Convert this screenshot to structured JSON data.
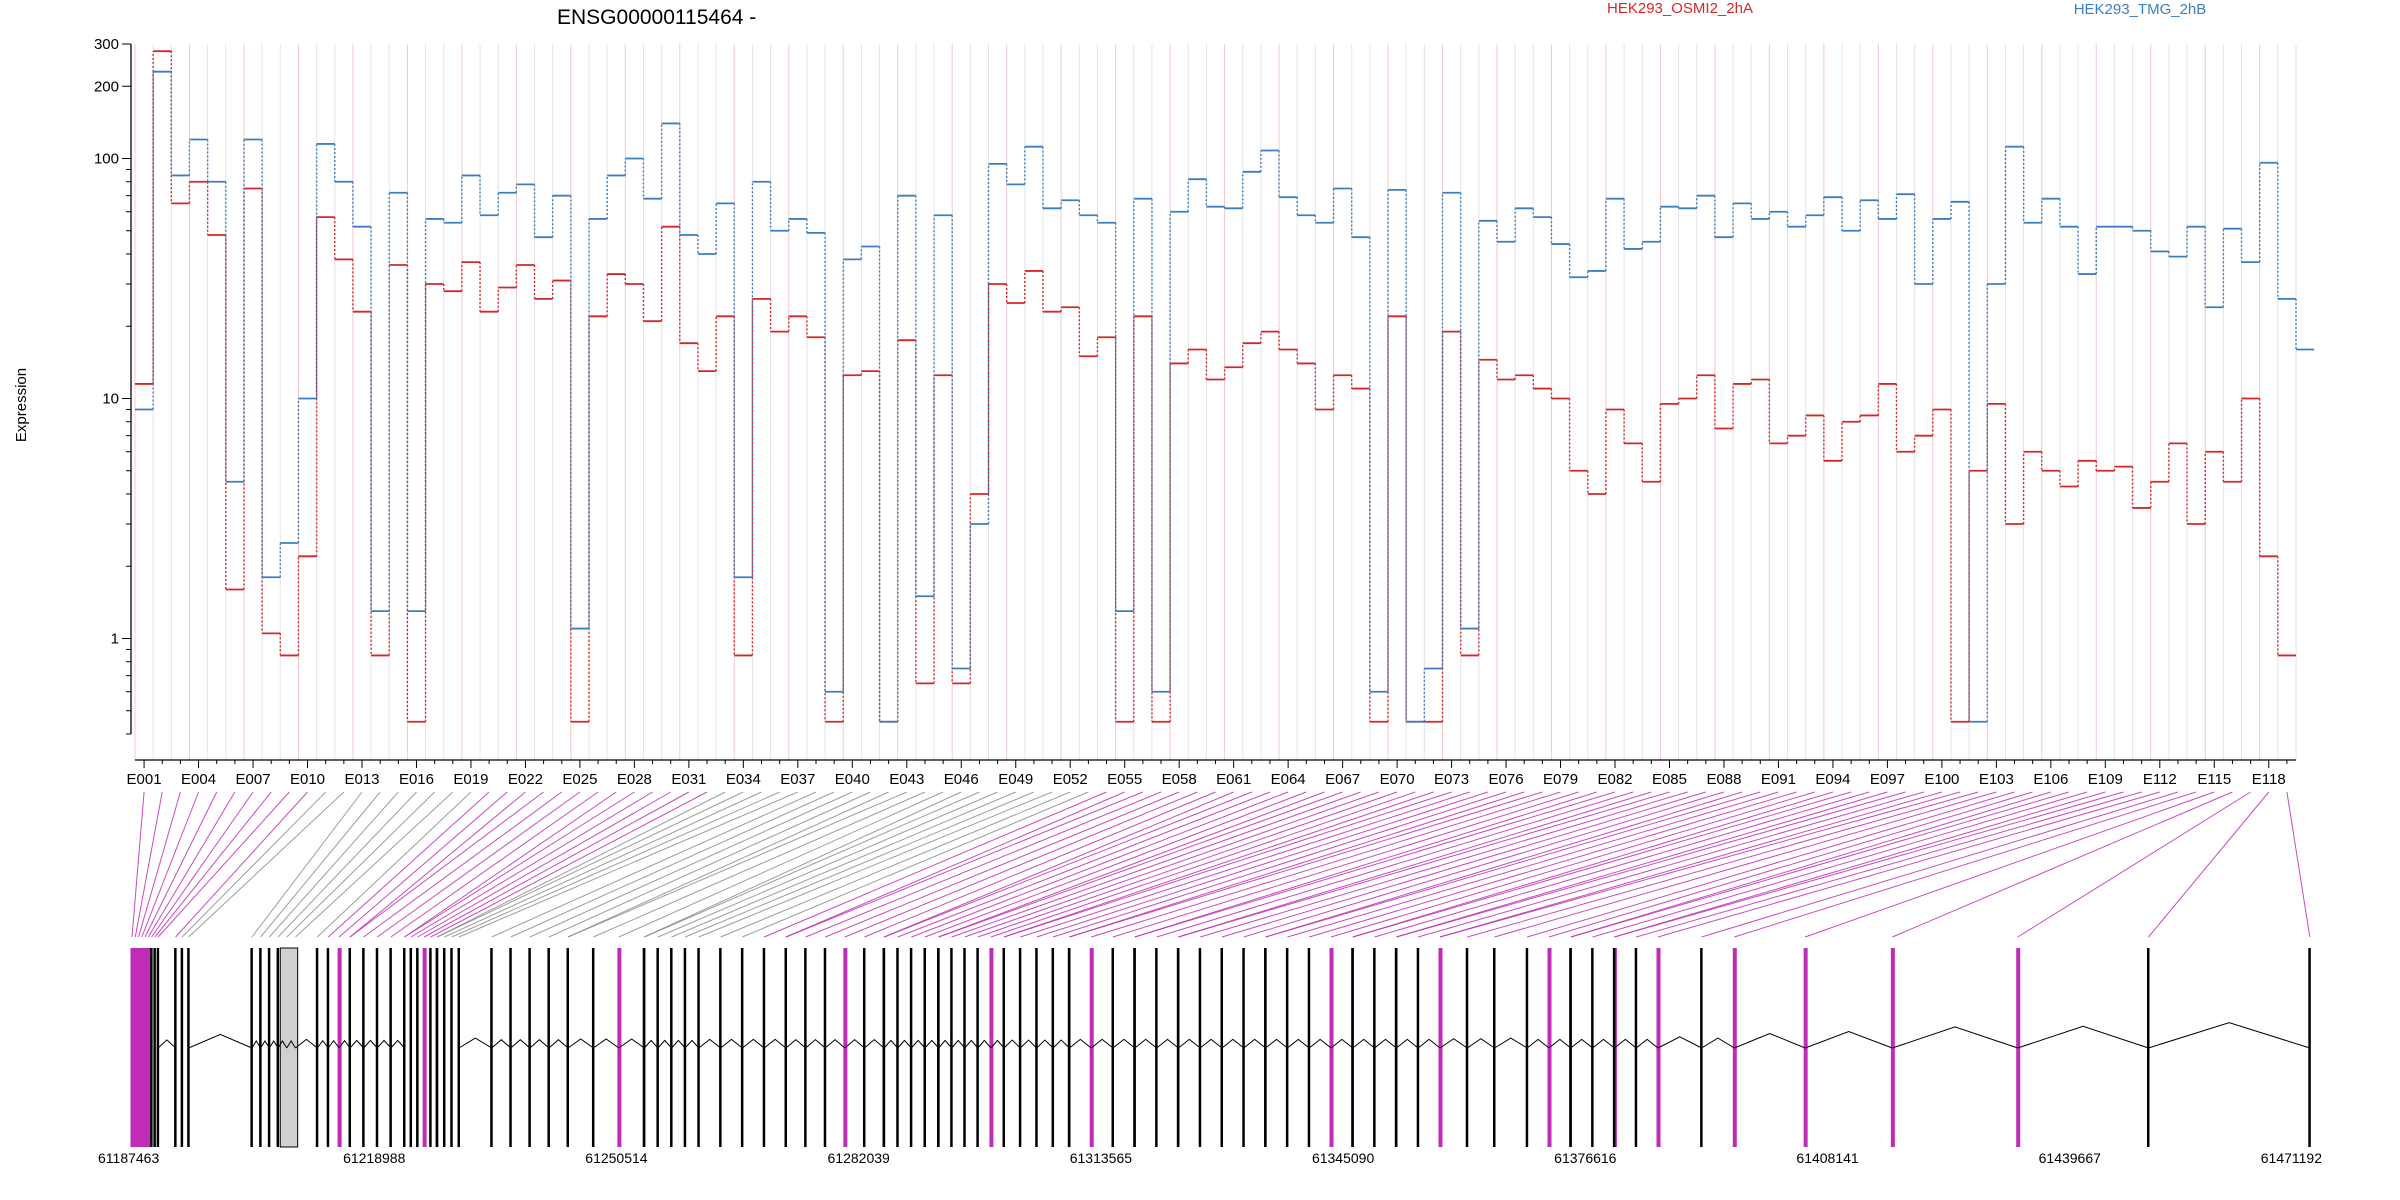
{
  "chart_data": {
    "type": "line",
    "title": "ENSG00000115464 -",
    "xlabel": "",
    "ylabel": "Expression",
    "y_scale": "log",
    "ylim": [
      0.4,
      300
    ],
    "y_ticks": [
      1,
      10,
      100,
      200,
      300
    ],
    "y_tick_labels": [
      "1",
      "10",
      "100",
      "200",
      "300"
    ],
    "legend_placement": "top-right",
    "grid": "vertical lines at each exon bin",
    "x_tick_labels": [
      "E001",
      "E004",
      "E007",
      "E010",
      "E013",
      "E016",
      "E019",
      "E022",
      "E025",
      "E028",
      "E031",
      "E034",
      "E037",
      "E040",
      "E043",
      "E046",
      "E049",
      "E052",
      "E055",
      "E058",
      "E061",
      "E064",
      "E067",
      "E070",
      "E073",
      "E076",
      "E079",
      "E082",
      "E085",
      "E088",
      "E091",
      "E094",
      "E097",
      "E100",
      "E103",
      "E106",
      "E109",
      "E112",
      "E115",
      "E118"
    ],
    "series": [
      {
        "name": "HEK293_OSMI2_2hA",
        "color": "#d62728",
        "values": [
          11.5,
          280,
          65,
          80,
          48,
          1.6,
          75,
          1.05,
          0.85,
          2.2,
          57,
          38,
          23,
          0.85,
          36,
          0.45,
          30,
          28,
          37,
          23,
          29,
          36,
          26,
          31,
          0.45,
          22,
          33,
          30,
          21,
          52,
          17,
          13,
          22,
          0.85,
          26,
          19,
          22,
          18,
          0.45,
          12.5,
          13,
          0.45,
          17.5,
          0.65,
          12.5,
          0.65,
          4,
          30,
          25,
          34,
          23,
          24,
          15,
          18,
          0.45,
          22,
          0.45,
          14,
          16,
          12,
          13.5,
          17,
          19,
          16,
          14,
          9,
          12.5,
          11,
          0.45,
          22,
          0.45,
          0.45,
          19,
          0.85,
          14.5,
          12,
          12.5,
          11,
          10,
          5,
          4,
          9,
          6.5,
          4.5,
          9.5,
          10,
          12.5,
          7.5,
          11.5,
          12,
          6.5,
          7,
          8.5,
          5.5,
          8,
          8.5,
          11.5,
          6,
          7,
          9,
          0.45,
          5,
          9.5,
          3,
          6,
          5,
          4.3,
          5.5,
          5,
          5.2,
          3.5,
          4.5,
          6.5,
          3,
          6,
          4.5,
          10,
          2.2,
          0.85
        ]
      },
      {
        "name": "HEK293_TMG_2hB",
        "color": "#3c7fc0",
        "values": [
          9,
          230,
          85,
          120,
          80,
          4.5,
          120,
          1.8,
          2.5,
          10,
          115,
          80,
          52,
          1.3,
          72,
          1.3,
          56,
          54,
          85,
          58,
          72,
          78,
          47,
          70,
          1.1,
          56,
          85,
          100,
          68,
          140,
          48,
          40,
          65,
          1.8,
          80,
          50,
          56,
          49,
          0.6,
          38,
          43,
          0.45,
          70,
          1.5,
          58,
          0.75,
          3,
          95,
          78,
          112,
          62,
          67,
          58,
          54,
          1.3,
          68,
          0.6,
          60,
          82,
          63,
          62,
          88,
          108,
          69,
          58,
          54,
          75,
          47,
          0.6,
          74,
          0.45,
          0.75,
          72,
          1.1,
          55,
          45,
          62,
          57,
          44,
          32,
          34,
          68,
          42,
          45,
          63,
          62,
          70,
          47,
          65,
          56,
          60,
          52,
          58,
          69,
          50,
          67,
          56,
          71,
          30,
          56,
          66,
          0.45,
          30,
          112,
          54,
          68,
          52,
          33,
          52,
          52,
          50,
          41,
          39,
          52,
          24,
          51,
          37,
          96,
          26,
          16
        ]
      }
    ],
    "gene_axis": {
      "coordinates": [
        "61187463",
        "61218988",
        "61250514",
        "61282039",
        "61313565",
        "61345090",
        "61376616",
        "61408141",
        "61439667",
        "61471192"
      ]
    },
    "colors": {
      "exon_highlight": "#c02cb6",
      "connector_gray": "#8c8c8c",
      "background": "#ffffff"
    }
  }
}
